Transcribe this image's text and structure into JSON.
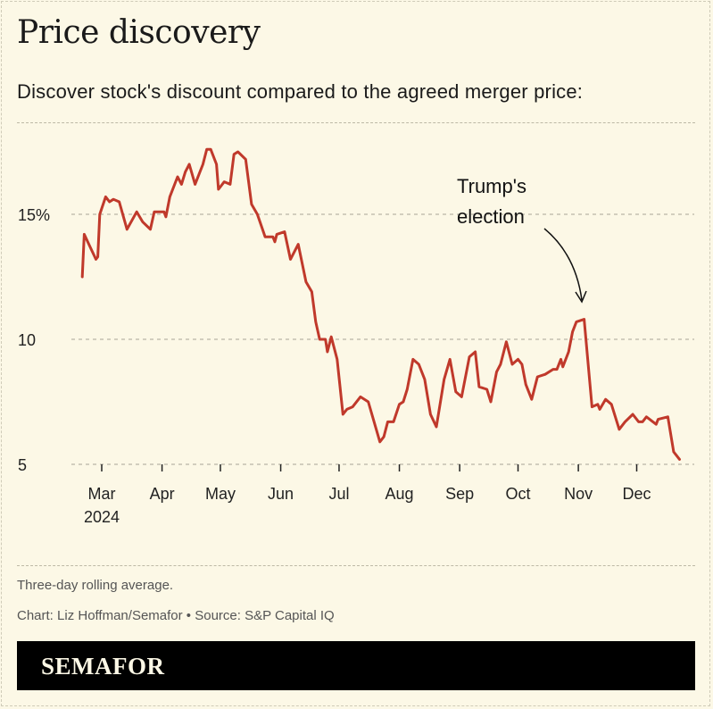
{
  "title": "Price discovery",
  "subtitle": "Discover stock's discount compared to the agreed merger price:",
  "notes": {
    "method": "Three-day rolling average.",
    "credit": "Chart: Liz Hoffman/Semafor • Source: S&P Capital IQ"
  },
  "brand": "SEMAFOR",
  "colors": {
    "line": "#c0392b",
    "background": "#fcf8e6",
    "brand_bar": "#000000"
  },
  "chart_data": {
    "type": "line",
    "title": "",
    "xlabel": "",
    "ylabel": "",
    "ylim": [
      5,
      15
    ],
    "y_ticks": [
      {
        "value": 15,
        "label": "15%"
      },
      {
        "value": 10,
        "label": "10"
      },
      {
        "value": 5,
        "label": "5"
      }
    ],
    "x_ticks": [
      {
        "date": "2024-03-01",
        "label": "Mar",
        "sublabel": "2024"
      },
      {
        "date": "2024-04-01",
        "label": "Apr"
      },
      {
        "date": "2024-05-01",
        "label": "May"
      },
      {
        "date": "2024-06-01",
        "label": "Jun"
      },
      {
        "date": "2024-07-01",
        "label": "Jul"
      },
      {
        "date": "2024-08-01",
        "label": "Aug"
      },
      {
        "date": "2024-09-01",
        "label": "Sep"
      },
      {
        "date": "2024-10-01",
        "label": "Oct"
      },
      {
        "date": "2024-11-01",
        "label": "Nov"
      },
      {
        "date": "2024-12-01",
        "label": "Dec"
      }
    ],
    "grid": "horizontal dashed",
    "annotation": {
      "lines": [
        "Trump's",
        "election"
      ],
      "date": "2024-11-01",
      "value": 10.8
    },
    "series": [
      {
        "x": [
          "2024-02-20",
          "2024-02-21",
          "2024-02-24",
          "2024-02-27",
          "2024-02-28",
          "2024-02-29",
          "2024-03-03",
          "2024-03-05",
          "2024-03-07",
          "2024-03-10",
          "2024-03-14",
          "2024-03-19",
          "2024-03-22",
          "2024-03-26",
          "2024-03-28",
          "2024-04-02",
          "2024-04-03",
          "2024-04-05",
          "2024-04-09",
          "2024-04-11",
          "2024-04-13",
          "2024-04-15",
          "2024-04-18",
          "2024-04-22",
          "2024-04-24",
          "2024-04-26",
          "2024-04-29",
          "2024-04-30",
          "2024-05-03",
          "2024-05-06",
          "2024-05-08",
          "2024-05-10",
          "2024-05-14",
          "2024-05-17",
          "2024-05-20",
          "2024-05-24",
          "2024-05-28",
          "2024-05-29",
          "2024-05-30",
          "2024-06-03",
          "2024-06-06",
          "2024-06-10",
          "2024-06-14",
          "2024-06-17",
          "2024-06-19",
          "2024-06-21",
          "2024-06-24",
          "2024-06-25",
          "2024-06-27",
          "2024-06-30",
          "2024-07-03",
          "2024-07-05",
          "2024-07-08",
          "2024-07-12",
          "2024-07-16",
          "2024-07-22",
          "2024-07-24",
          "2024-07-26",
          "2024-07-29",
          "2024-08-01",
          "2024-08-03",
          "2024-08-05",
          "2024-08-08",
          "2024-08-11",
          "2024-08-14",
          "2024-08-17",
          "2024-08-20",
          "2024-08-24",
          "2024-08-27",
          "2024-08-30",
          "2024-09-02",
          "2024-09-06",
          "2024-09-09",
          "2024-09-11",
          "2024-09-15",
          "2024-09-17",
          "2024-09-20",
          "2024-09-22",
          "2024-09-25",
          "2024-09-28",
          "2024-10-01",
          "2024-10-03",
          "2024-10-05",
          "2024-10-08",
          "2024-10-11",
          "2024-10-15",
          "2024-10-19",
          "2024-10-21",
          "2024-10-23",
          "2024-10-24",
          "2024-10-27",
          "2024-10-29",
          "2024-10-31",
          "2024-11-04",
          "2024-11-08",
          "2024-11-11",
          "2024-11-12",
          "2024-11-15",
          "2024-11-18",
          "2024-11-22",
          "2024-11-25",
          "2024-11-29",
          "2024-12-02",
          "2024-12-04",
          "2024-12-06",
          "2024-12-11",
          "2024-12-12",
          "2024-12-17",
          "2024-12-20",
          "2024-12-23"
        ],
        "y": [
          12.5,
          14.2,
          13.7,
          13.2,
          13.3,
          15.0,
          15.7,
          15.5,
          15.6,
          15.5,
          14.4,
          15.1,
          14.7,
          14.4,
          15.1,
          15.1,
          14.9,
          15.7,
          16.5,
          16.2,
          16.7,
          17.0,
          16.2,
          17.0,
          17.6,
          17.6,
          17.0,
          16.0,
          16.3,
          16.2,
          17.4,
          17.5,
          17.2,
          15.4,
          15.0,
          14.1,
          14.1,
          13.9,
          14.2,
          14.3,
          13.2,
          13.8,
          12.3,
          11.9,
          10.7,
          10.0,
          10.0,
          9.5,
          10.1,
          9.2,
          7.0,
          7.2,
          7.3,
          7.7,
          7.5,
          5.9,
          6.1,
          6.7,
          6.7,
          7.4,
          7.5,
          8.0,
          9.2,
          9.0,
          8.4,
          7.0,
          6.5,
          8.4,
          9.2,
          7.9,
          7.7,
          9.3,
          9.5,
          8.1,
          8.0,
          7.5,
          8.7,
          9.0,
          9.9,
          9.0,
          9.2,
          9.0,
          8.2,
          7.6,
          8.5,
          8.6,
          8.8,
          8.8,
          9.2,
          8.9,
          9.5,
          10.3,
          10.7,
          10.8,
          7.3,
          7.4,
          7.2,
          7.6,
          7.4,
          6.4,
          6.7,
          7.0,
          6.7,
          6.7,
          6.9,
          6.6,
          6.8,
          6.9,
          5.5,
          5.2
        ]
      }
    ]
  }
}
